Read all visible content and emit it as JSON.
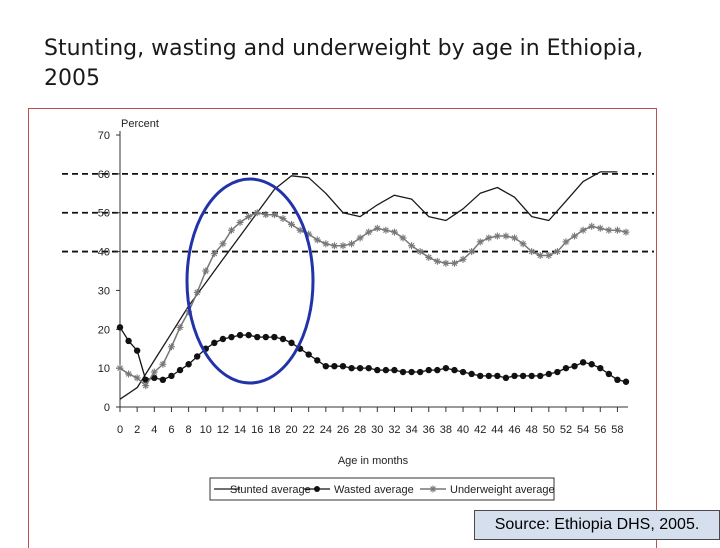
{
  "title": "Stunting, wasting and underweight by age in Ethiopia, 2005",
  "source": "Source: Ethiopia DHS, 2005.",
  "colors": {
    "frame": "#b9534f",
    "stunted": "#1a1a1a",
    "wasted": "#111111",
    "underweight": "#777777",
    "highlight": "#2233aa",
    "source_bg": "#d6dfee"
  },
  "chart_data": {
    "type": "line",
    "title": "",
    "ylabel": "Percent",
    "xlabel": "Age in months",
    "xlim": [
      0,
      59
    ],
    "ylim": [
      0,
      70
    ],
    "yticks": [
      0,
      10,
      20,
      30,
      40,
      50,
      60,
      70
    ],
    "xticks": [
      0,
      2,
      4,
      6,
      8,
      10,
      12,
      14,
      16,
      18,
      20,
      22,
      24,
      26,
      28,
      30,
      32,
      34,
      36,
      38,
      40,
      42,
      44,
      46,
      48,
      50,
      52,
      54,
      56,
      58
    ],
    "dashed_reference_lines": [
      40,
      50,
      60
    ],
    "legend": {
      "placement": "bottom"
    },
    "series": [
      {
        "name": "Stunted average",
        "marker": "none",
        "x": [
          0,
          2,
          4,
          6,
          8,
          10,
          12,
          14,
          16,
          18,
          20,
          22,
          24,
          26,
          28,
          30,
          32,
          34,
          36,
          38,
          40,
          42,
          44,
          46,
          48,
          50,
          52,
          54,
          56,
          58
        ],
        "values": [
          2,
          5,
          12,
          19,
          26,
          32,
          38,
          44,
          50,
          56,
          59.5,
          59,
          55,
          50,
          49,
          52,
          54.5,
          53.5,
          49,
          48,
          51,
          55,
          56.5,
          54,
          49,
          48,
          53,
          58,
          60.5,
          60.5
        ]
      },
      {
        "name": "Wasted average",
        "marker": "dot",
        "x": [
          0,
          1,
          2,
          3,
          4,
          5,
          6,
          7,
          8,
          9,
          10,
          11,
          12,
          13,
          14,
          15,
          16,
          17,
          18,
          19,
          20,
          21,
          22,
          23,
          24,
          25,
          26,
          27,
          28,
          29,
          30,
          31,
          32,
          33,
          34,
          35,
          36,
          37,
          38,
          39,
          40,
          41,
          42,
          43,
          44,
          45,
          46,
          47,
          48,
          49,
          50,
          51,
          52,
          53,
          54,
          55,
          56,
          57,
          58,
          59
        ],
        "values": [
          20.5,
          17,
          14.5,
          7,
          7.5,
          7,
          8,
          9.5,
          11,
          13,
          15,
          16.5,
          17.5,
          18,
          18.5,
          18.5,
          18,
          18,
          18,
          17.5,
          16.5,
          15,
          13.5,
          12,
          10.5,
          10.5,
          10.5,
          10,
          10,
          10,
          9.5,
          9.5,
          9.5,
          9,
          9,
          9,
          9.5,
          9.5,
          10,
          9.5,
          9,
          8.5,
          8,
          8,
          8,
          7.5,
          8,
          8,
          8,
          8,
          8.5,
          9,
          10,
          10.5,
          11.5,
          11,
          10,
          8.5,
          7,
          6.5
        ]
      },
      {
        "name": "Underweight average",
        "marker": "star",
        "x": [
          0,
          1,
          2,
          3,
          4,
          5,
          6,
          7,
          8,
          9,
          10,
          11,
          12,
          13,
          14,
          15,
          16,
          17,
          18,
          19,
          20,
          21,
          22,
          23,
          24,
          25,
          26,
          27,
          28,
          29,
          30,
          31,
          32,
          33,
          34,
          35,
          36,
          37,
          38,
          39,
          40,
          41,
          42,
          43,
          44,
          45,
          46,
          47,
          48,
          49,
          50,
          51,
          52,
          53,
          54,
          55,
          56,
          57,
          58,
          59
        ],
        "values": [
          10,
          8.5,
          7.5,
          5.5,
          9,
          11,
          15.5,
          20.5,
          24.5,
          29.5,
          35,
          39.5,
          42,
          45.5,
          47.5,
          49,
          50,
          49.5,
          49.5,
          48.5,
          47,
          45.5,
          44.5,
          43,
          42,
          41.5,
          41.5,
          42,
          43.5,
          45,
          46,
          45.5,
          45,
          43.5,
          41.5,
          40,
          38.5,
          37.5,
          37,
          37,
          38,
          40,
          42.5,
          43.5,
          44,
          44,
          43.5,
          42,
          40,
          39,
          39,
          40,
          42.5,
          44,
          45.5,
          46.5,
          46,
          45.5,
          45.5,
          45
        ]
      }
    ]
  }
}
